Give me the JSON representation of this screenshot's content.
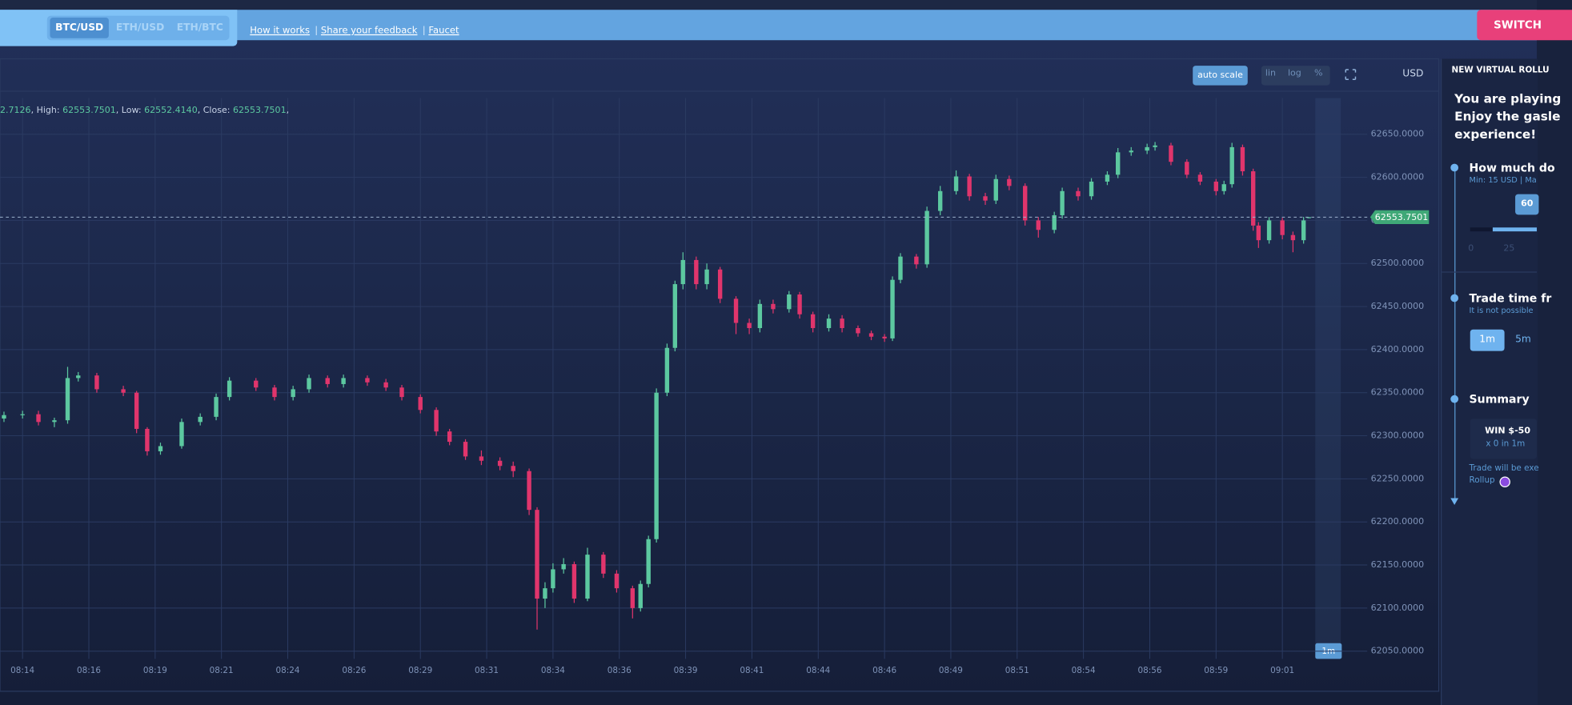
{
  "header": {
    "pairs": [
      "BTC/USD",
      "ETH/USD",
      "ETH/BTC"
    ],
    "links": [
      "How it works",
      "Share your feedback",
      "Faucet"
    ],
    "switch_button": "SWITCH"
  },
  "toolbar": {
    "auto_scale": "auto scale",
    "scale_modes": [
      "lin",
      "log",
      "%"
    ],
    "currency": "USD"
  },
  "ohlc_info": [
    "2.7126",
    ", High: ",
    "62553.7501",
    ", Low: ",
    "62552.4140",
    ", Close: ",
    "62553.7501",
    ","
  ],
  "chart_data": {
    "type": "candlestick",
    "period": "1m",
    "x": [
      493.3,
      494.0,
      494.6,
      495.2,
      495.7,
      496.1,
      496.8,
      497.8,
      498.3,
      498.7,
      499.2,
      500.0,
      500.7,
      501.3,
      501.8,
      502.8,
      503.5,
      504.2,
      504.8,
      505.5,
      506.1,
      507.0,
      507.7,
      508.3,
      509.0,
      509.6,
      510.1,
      510.7,
      511.3,
      512.0,
      512.5,
      513.1,
      513.4,
      513.7,
      514.0,
      514.4,
      514.8,
      515.3,
      515.9,
      516.4,
      517.0,
      517.3,
      517.6,
      517.9,
      518.3,
      518.6,
      518.9,
      519.4,
      519.8,
      520.3,
      520.9,
      521.4,
      521.8,
      522.3,
      522.9,
      523.3,
      523.8,
      524.4,
      524.9,
      525.5,
      526.0,
      526.5,
      526.8,
      527.1,
      527.7,
      528.1,
      528.6,
      529.2,
      529.7,
      530.3,
      530.7,
      531.2,
      531.8,
      532.3,
      532.9,
      533.2,
      533.8,
      534.3,
      534.9,
      535.3,
      535.8,
      536.4,
      536.7,
      537.3,
      537.9,
      538.4,
      539.0,
      539.3,
      539.6,
      540.0,
      540.4,
      540.6,
      541.0,
      541.5,
      541.9,
      542.3,
      542.5
    ],
    "open": [
      62320,
      62324,
      62325,
      62316,
      62318,
      62367,
      62370,
      62354,
      62350,
      62308,
      62282,
      62288,
      62316,
      62322,
      62345,
      62364,
      62356,
      62345,
      62354,
      62367,
      62360,
      62367,
      62362,
      62356,
      62345,
      62330,
      62305,
      62293,
      62276,
      62271,
      62265,
      62259,
      62214,
      62111,
      62123,
      62145,
      62151,
      62111,
      62162,
      62140,
      62123,
      62100,
      62128,
      62180,
      62350,
      62402,
      62476,
      62504,
      62476,
      62493,
      62459,
      62431,
      62425,
      62453,
      62447,
      62464,
      62441,
      62425,
      62436,
      62425,
      62419,
      62415,
      62413,
      62481,
      62508,
      62499,
      62561,
      62584,
      62601,
      62578,
      62573,
      62598,
      62590,
      62550,
      62539,
      62556,
      62584,
      62578,
      62595,
      62603,
      62629,
      62631,
      62635,
      62637,
      62618,
      62603,
      62595,
      62584,
      62592,
      62635,
      62607,
      62544,
      62527,
      62550,
      62533,
      62527,
      62552.7126
    ],
    "high": [
      62328,
      62329,
      62329,
      62321,
      62380,
      62374,
      62373,
      62358,
      62352,
      62310,
      62292,
      62320,
      62326,
      62349,
      62368,
      62367,
      62359,
      62358,
      62371,
      62370,
      62371,
      62370,
      62366,
      62359,
      62348,
      62333,
      62308,
      62296,
      62283,
      62275,
      62270,
      62262,
      62217,
      62130,
      62152,
      62158,
      62154,
      62170,
      62165,
      62144,
      62126,
      62132,
      62184,
      62355,
      62407,
      62480,
      62513,
      62508,
      62500,
      62496,
      62462,
      62436,
      62458,
      62458,
      62468,
      62467,
      62444,
      62441,
      62440,
      62428,
      62422,
      62418,
      62485,
      62512,
      62511,
      62566,
      62590,
      62608,
      62604,
      62582,
      62603,
      62602,
      62593,
      62554,
      62560,
      62588,
      62588,
      62599,
      62607,
      62634,
      62635,
      62639,
      62641,
      62640,
      62621,
      62606,
      62598,
      62596,
      62640,
      62638,
      62610,
      62548,
      62554,
      62553,
      62537,
      62554,
      62553.7501
    ],
    "low": [
      62316,
      62320,
      62312,
      62310,
      62314,
      62363,
      62350,
      62346,
      62303,
      62277,
      62278,
      62285,
      62312,
      62318,
      62341,
      62352,
      62341,
      62341,
      62350,
      62356,
      62356,
      62358,
      62352,
      62341,
      62326,
      62300,
      62289,
      62272,
      62266,
      62260,
      62252,
      62208,
      62075,
      62100,
      62118,
      62140,
      62106,
      62108,
      62135,
      62118,
      62088,
      62096,
      62124,
      62176,
      62346,
      62398,
      62470,
      62470,
      62470,
      62454,
      62418,
      62418,
      62420,
      62442,
      62443,
      62436,
      62420,
      62421,
      62420,
      62415,
      62411,
      62409,
      62410,
      62477,
      62494,
      62495,
      62556,
      62580,
      62573,
      62568,
      62569,
      62585,
      62544,
      62530,
      62535,
      62552,
      62573,
      62574,
      62591,
      62599,
      62625,
      62627,
      62631,
      62614,
      62599,
      62591,
      62579,
      62580,
      62588,
      62602,
      62538,
      62518,
      62523,
      62528,
      62513,
      62523,
      62552.414
    ],
    "close": [
      62324,
      62325,
      62316,
      62318,
      62367,
      62370,
      62354,
      62350,
      62308,
      62282,
      62288,
      62316,
      62322,
      62345,
      62364,
      62356,
      62345,
      62354,
      62367,
      62360,
      62367,
      62362,
      62356,
      62345,
      62330,
      62305,
      62293,
      62276,
      62271,
      62265,
      62259,
      62214,
      62111,
      62123,
      62145,
      62151,
      62111,
      62162,
      62140,
      62123,
      62100,
      62128,
      62180,
      62350,
      62402,
      62476,
      62504,
      62476,
      62493,
      62459,
      62431,
      62425,
      62453,
      62447,
      62464,
      62441,
      62425,
      62436,
      62425,
      62419,
      62415,
      62413,
      62481,
      62508,
      62499,
      62561,
      62584,
      62601,
      62578,
      62573,
      62598,
      62590,
      62550,
      62539,
      62556,
      62584,
      62578,
      62595,
      62603,
      62629,
      62631,
      62635,
      62637,
      62618,
      62603,
      62595,
      62584,
      62592,
      62635,
      62607,
      62544,
      62527,
      62550,
      62533,
      62527,
      62550,
      62553.7501
    ],
    "up_color": "#5cc8a0",
    "down_color": "#e0356c",
    "xlim": [
      493.15,
      544.7
    ],
    "xticks": [
      {
        "value": 494,
        "label": "08:14"
      },
      {
        "value": 496.5,
        "label": "08:16"
      },
      {
        "value": 499,
        "label": "08:19"
      },
      {
        "value": 501.5,
        "label": "08:21"
      },
      {
        "value": 504,
        "label": "08:24"
      },
      {
        "value": 506.5,
        "label": "08:26"
      },
      {
        "value": 509,
        "label": "08:29"
      },
      {
        "value": 511.5,
        "label": "08:31"
      },
      {
        "value": 514,
        "label": "08:34"
      },
      {
        "value": 516.5,
        "label": "08:36"
      },
      {
        "value": 519,
        "label": "08:39"
      },
      {
        "value": 521.5,
        "label": "08:41"
      },
      {
        "value": 524,
        "label": "08:44"
      },
      {
        "value": 526.5,
        "label": "08:46"
      },
      {
        "value": 529,
        "label": "08:49"
      },
      {
        "value": 531.5,
        "label": "08:51"
      },
      {
        "value": 534,
        "label": "08:54"
      },
      {
        "value": 536.5,
        "label": "08:56"
      },
      {
        "value": 539,
        "label": "08:59"
      },
      {
        "value": 541.5,
        "label": "09:01"
      }
    ],
    "ylim": [
      62041,
      62692
    ],
    "yticks": [
      {
        "value": 62050,
        "label": "62050.0000"
      },
      {
        "value": 62100,
        "label": "62100.0000"
      },
      {
        "value": 62150,
        "label": "62150.0000"
      },
      {
        "value": 62200,
        "label": "62200.0000"
      },
      {
        "value": 62250,
        "label": "62250.0000"
      },
      {
        "value": 62300,
        "label": "62300.0000"
      },
      {
        "value": 62350,
        "label": "62350.0000"
      },
      {
        "value": 62400,
        "label": "62400.0000"
      },
      {
        "value": 62450,
        "label": "62450.0000"
      },
      {
        "value": 62500,
        "label": "62500.0000"
      },
      {
        "value": 62550,
        "label": "62550.0000"
      },
      {
        "value": 62600,
        "label": "62600.0000"
      },
      {
        "value": 62650,
        "label": "62650.0000"
      }
    ],
    "grid": true
  },
  "side_panel": {
    "title": "NEW VIRTUAL ROLLU",
    "intro": [
      "You are playing",
      "Enjoy the gasle",
      "experience!"
    ],
    "steps": [
      {
        "title": "How much do",
        "hint": "Min: 15 USD | Ma"
      },
      {
        "title": "Trade time fr",
        "hint": "It is not possible"
      },
      {
        "title": "Summary"
      }
    ],
    "amount": "60",
    "slider_labels": [
      "0",
      "25"
    ],
    "time_options": [
      "1m",
      "5m"
    ],
    "summary": {
      "result": "WIN $-50",
      "detail": "x 0 in 1m",
      "note": [
        "Trade will be exe",
        "Rollup"
      ]
    }
  }
}
